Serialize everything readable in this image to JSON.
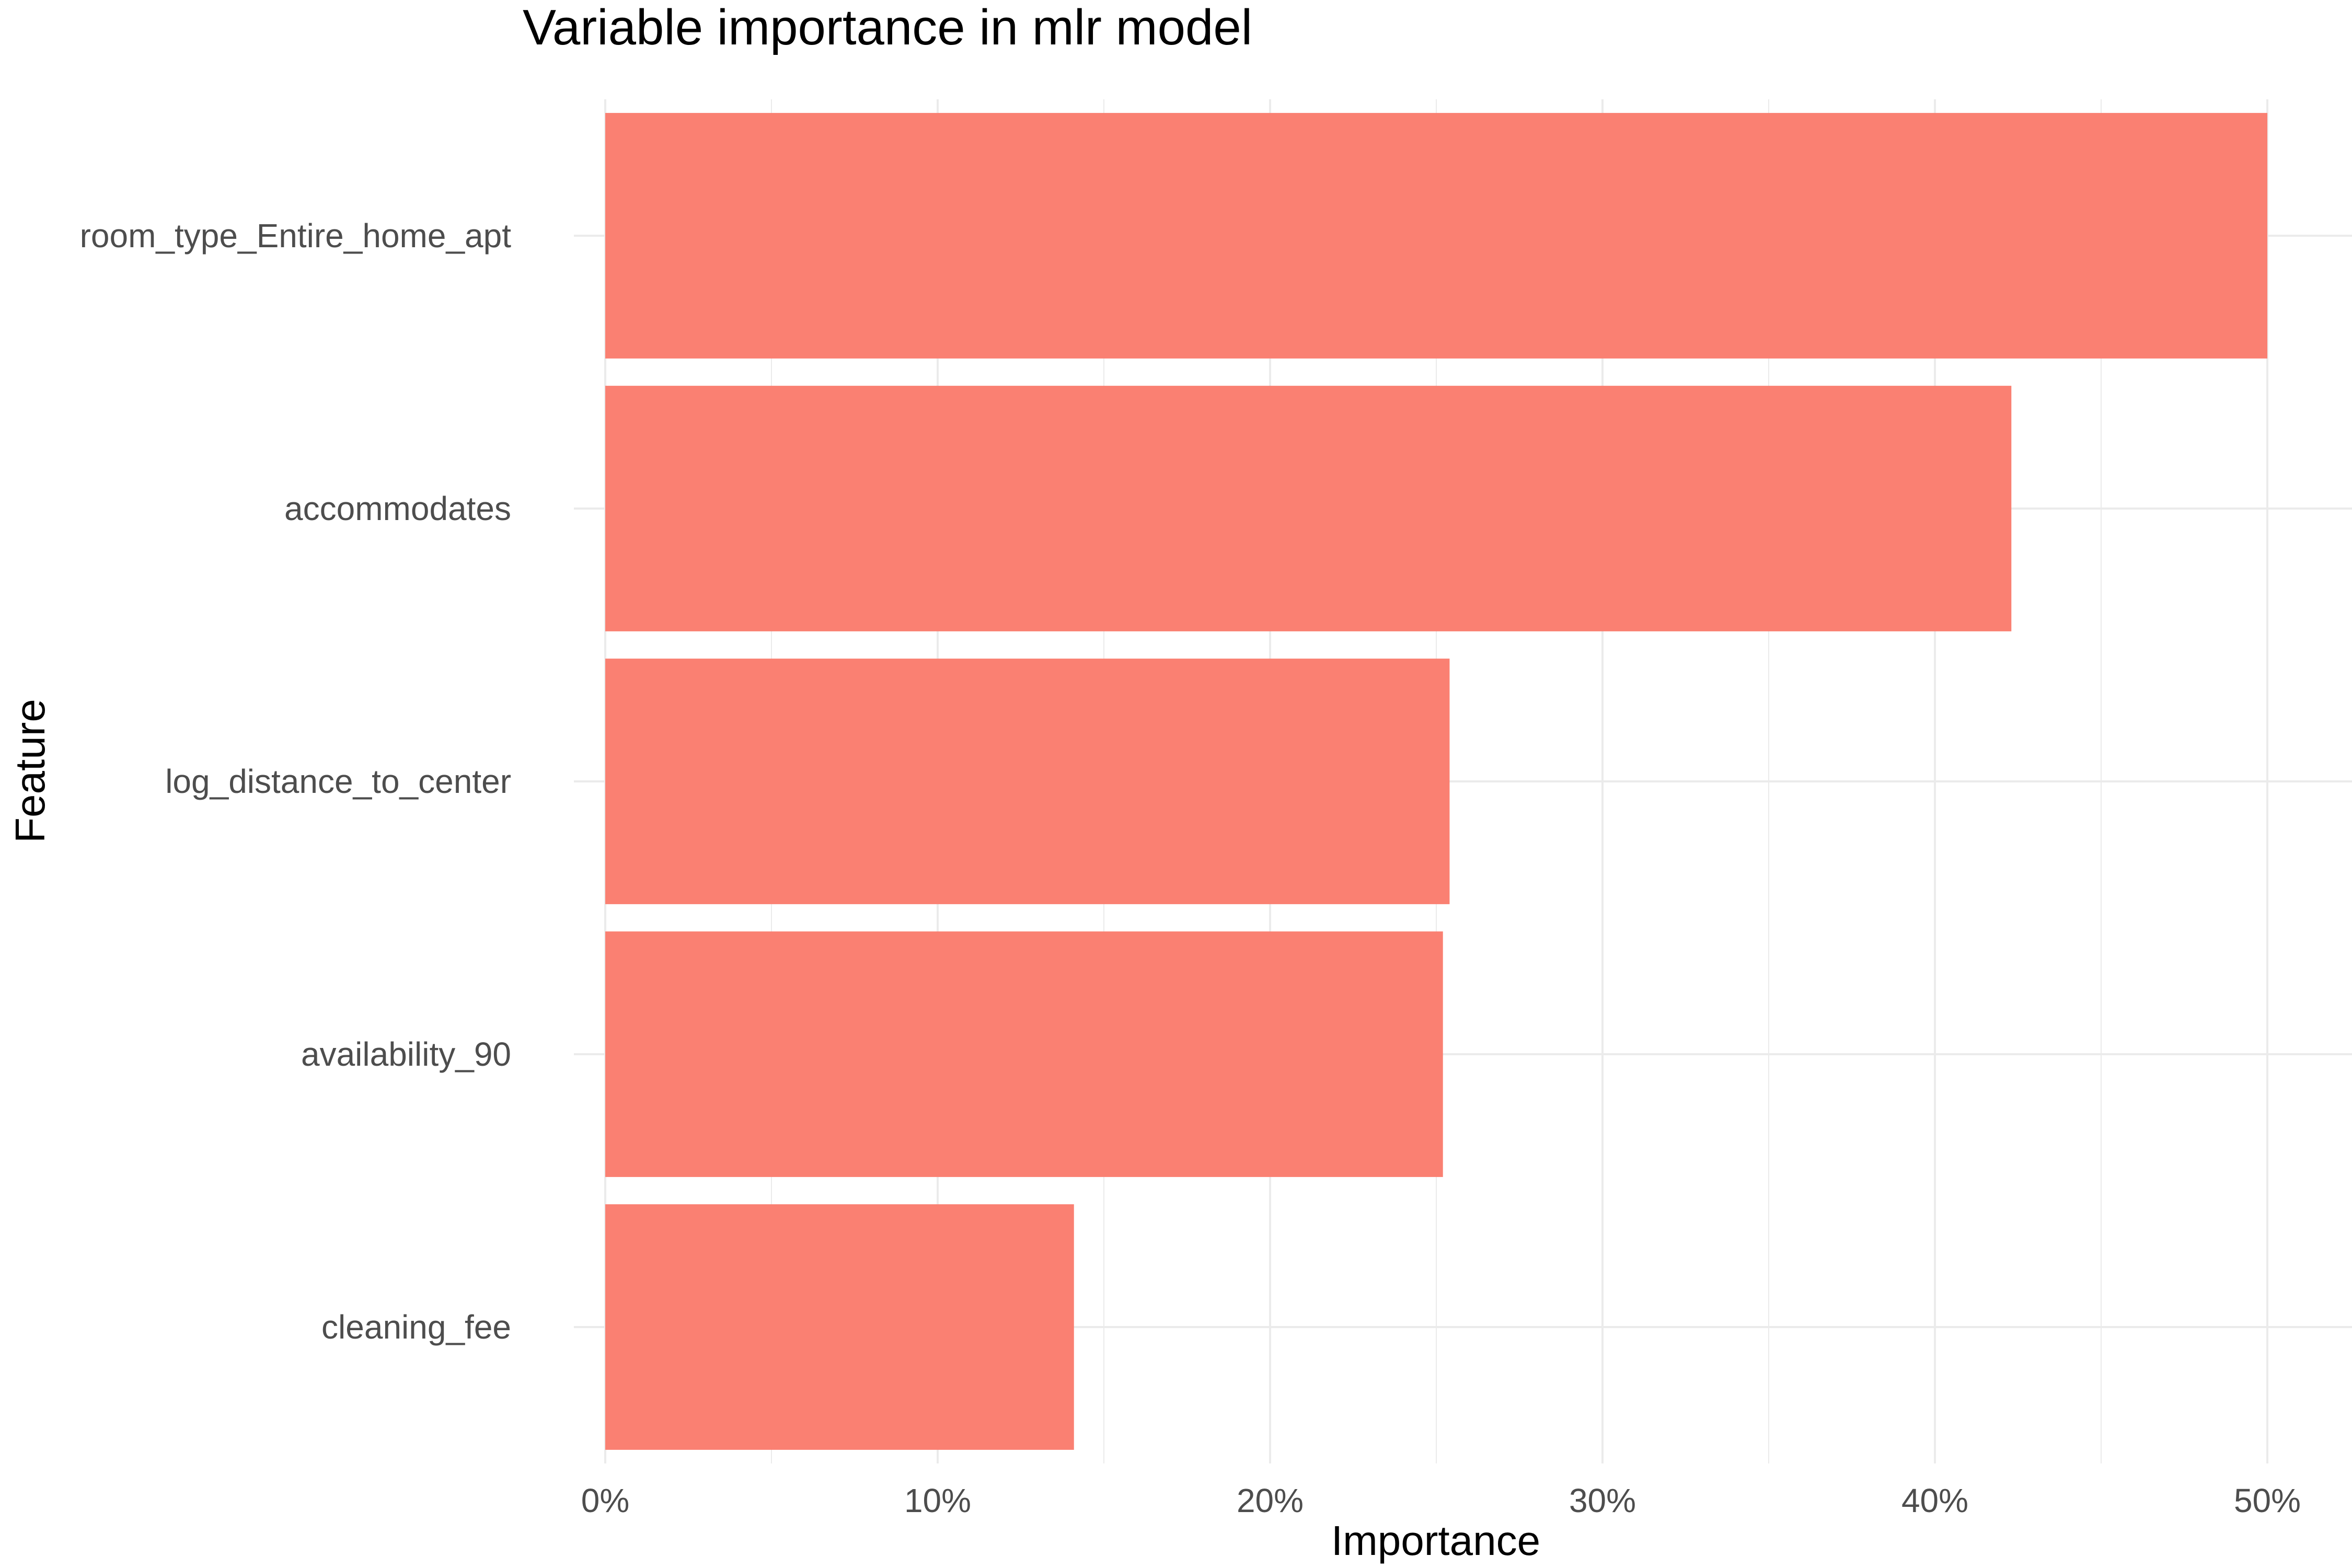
{
  "chart_data": {
    "type": "bar",
    "orientation": "horizontal",
    "title": "Variable importance in mlr model",
    "xlabel": "Importance",
    "ylabel": "Feature",
    "categories": [
      "room_type_Entire_home_apt",
      "accommodates",
      "log_distance_to_center",
      "availability_90",
      "cleaning_fee"
    ],
    "values": [
      0.5,
      0.423,
      0.254,
      0.252,
      0.141
    ],
    "xlim": [
      0,
      0.525
    ],
    "xticks": [
      0,
      0.1,
      0.2,
      0.3,
      0.4,
      0.5
    ],
    "xtick_labels": [
      "0%",
      "10%",
      "20%",
      "30%",
      "40%",
      "50%"
    ],
    "grid": true,
    "legend": "none",
    "bar_color": "#FA8072",
    "grid_color": "#EBEBEB",
    "text_color": "#4D4D4D",
    "title_color": "#000000"
  }
}
